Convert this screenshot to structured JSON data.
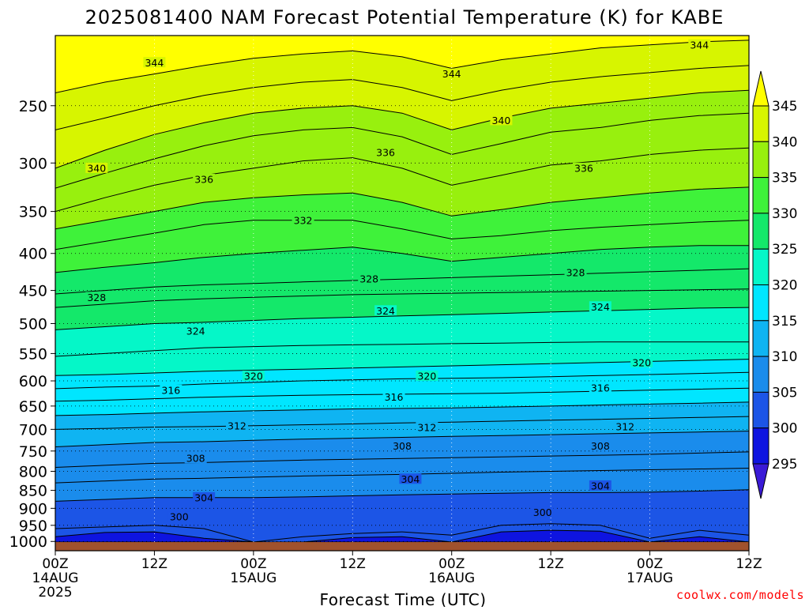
{
  "chart_data": {
    "type": "heatmap",
    "title": "2025081400 NAM Forecast Potential Temperature (K) for KABE",
    "xlabel": "Forecast Time (UTC)",
    "ylabel": "",
    "y_scale": "log",
    "y_inverted": true,
    "ylim": [
      1030,
      200
    ],
    "xlim": [
      0,
      84
    ],
    "x_unit": "hours since 2025-08-14 00Z",
    "y_ticks": [
      250,
      300,
      350,
      400,
      450,
      500,
      550,
      600,
      650,
      700,
      750,
      800,
      850,
      900,
      950,
      1000
    ],
    "x_ticks": [
      {
        "value": 0,
        "label": "00Z",
        "sub": "14AUG",
        "sub2": "2025"
      },
      {
        "value": 12,
        "label": "12Z",
        "sub": "",
        "sub2": ""
      },
      {
        "value": 24,
        "label": "00Z",
        "sub": "15AUG",
        "sub2": ""
      },
      {
        "value": 36,
        "label": "12Z",
        "sub": "",
        "sub2": ""
      },
      {
        "value": 48,
        "label": "00Z",
        "sub": "16AUG",
        "sub2": ""
      },
      {
        "value": 60,
        "label": "12Z",
        "sub": "",
        "sub2": ""
      },
      {
        "value": 72,
        "label": "00Z",
        "sub": "17AUG",
        "sub2": ""
      },
      {
        "value": 84,
        "label": "12Z",
        "sub": "",
        "sub2": ""
      }
    ],
    "grid": true,
    "legend": "right",
    "colorbar": {
      "levels": [
        295,
        300,
        305,
        310,
        315,
        320,
        325,
        330,
        335,
        340,
        345
      ],
      "colors": [
        "#3a1ad6",
        "#0e14e0",
        "#1c55e6",
        "#1a8cec",
        "#0fb4f2",
        "#00e6ff",
        "#05f7c8",
        "#14e86a",
        "#3ff23a",
        "#98f00e",
        "#d7f500",
        "#ffff00"
      ],
      "extend": "both"
    },
    "series": [
      {
        "value": 298,
        "pressures": [
          1002,
          1002,
          1002,
          1002,
          1002,
          1002,
          1002,
          1002,
          1002,
          1002,
          1002,
          1002,
          1002,
          1002,
          1002
        ]
      },
      {
        "value": 300,
        "pressures": [
          985,
          972,
          970,
          990,
          1002,
          1002,
          988,
          985,
          1002,
          970,
          965,
          968,
          1002,
          985,
          1002
        ]
      },
      {
        "value": 302,
        "pressures": [
          960,
          955,
          950,
          960,
          1002,
          985,
          975,
          970,
          980,
          950,
          945,
          950,
          990,
          965,
          980
        ]
      },
      {
        "value": 304,
        "pressures": [
          880,
          875,
          870,
          870,
          870,
          868,
          865,
          862,
          860,
          858,
          856,
          856,
          855,
          852,
          848
        ]
      },
      {
        "value": 306,
        "pressures": [
          830,
          825,
          820,
          818,
          815,
          812,
          810,
          808,
          805,
          802,
          800,
          798,
          796,
          794,
          792
        ]
      },
      {
        "value": 308,
        "pressures": [
          790,
          785,
          780,
          778,
          775,
          772,
          770,
          768,
          766,
          764,
          762,
          760,
          758,
          755,
          752
        ]
      },
      {
        "value": 310,
        "pressures": [
          740,
          735,
          730,
          728,
          725,
          722,
          720,
          718,
          716,
          714,
          712,
          710,
          708,
          706,
          704
        ]
      },
      {
        "value": 312,
        "pressures": [
          700,
          698,
          695,
          694,
          692,
          690,
          688,
          686,
          684,
          682,
          680,
          678,
          676,
          674,
          672
        ]
      },
      {
        "value": 314,
        "pressures": [
          670,
          668,
          665,
          662,
          660,
          658,
          656,
          655,
          654,
          652,
          650,
          648,
          646,
          644,
          642
        ]
      },
      {
        "value": 316,
        "pressures": [
          640,
          638,
          635,
          632,
          630,
          628,
          627,
          626,
          625,
          624,
          622,
          620,
          618,
          616,
          614
        ]
      },
      {
        "value": 318,
        "pressures": [
          615,
          612,
          610,
          606,
          603,
          600,
          598,
          596,
          595,
          594,
          592,
          590,
          588,
          586,
          584
        ]
      },
      {
        "value": 320,
        "pressures": [
          590,
          588,
          585,
          582,
          580,
          578,
          576,
          574,
          572,
          570,
          568,
          566,
          564,
          562,
          560
        ]
      },
      {
        "value": 322,
        "pressures": [
          555,
          550,
          545,
          540,
          538,
          536,
          535,
          534,
          533,
          532,
          531,
          530,
          530,
          530,
          530
        ]
      },
      {
        "value": 324,
        "pressures": [
          510,
          505,
          500,
          498,
          495,
          492,
          490,
          488,
          486,
          484,
          482,
          480,
          478,
          476,
          475
        ]
      },
      {
        "value": 326,
        "pressures": [
          475,
          470,
          465,
          462,
          460,
          458,
          456,
          455,
          454,
          453,
          452,
          451,
          450,
          449,
          448
        ]
      },
      {
        "value": 328,
        "pressures": [
          455,
          450,
          445,
          442,
          440,
          438,
          436,
          434,
          432,
          430,
          428,
          426,
          424,
          422,
          420
        ]
      },
      {
        "value": 330,
        "pressures": [
          425,
          418,
          412,
          405,
          400,
          396,
          392,
          400,
          410,
          405,
          400,
          395,
          392,
          390,
          390
        ]
      },
      {
        "value": 332,
        "pressures": [
          395,
          385,
          375,
          365,
          360,
          360,
          360,
          370,
          382,
          378,
          372,
          368,
          365,
          362,
          360
        ]
      },
      {
        "value": 334,
        "pressures": [
          370,
          360,
          350,
          340,
          335,
          332,
          330,
          340,
          355,
          348,
          340,
          335,
          330,
          326,
          324
        ]
      },
      {
        "value": 336,
        "pressures": [
          350,
          335,
          322,
          312,
          305,
          298,
          295,
          305,
          322,
          312,
          302,
          298,
          292,
          288,
          286
        ]
      },
      {
        "value": 338,
        "pressures": [
          325,
          310,
          296,
          284,
          275,
          270,
          268,
          276,
          292,
          282,
          272,
          268,
          262,
          258,
          256
        ]
      },
      {
        "value": 340,
        "pressures": [
          305,
          288,
          274,
          264,
          256,
          252,
          250,
          256,
          270,
          260,
          252,
          248,
          244,
          240,
          238
        ]
      },
      {
        "value": 342,
        "pressures": [
          270,
          260,
          250,
          242,
          236,
          232,
          230,
          236,
          246,
          238,
          232,
          228,
          225,
          222,
          220
        ]
      },
      {
        "value": 344,
        "pressures": [
          240,
          232,
          226,
          220,
          215,
          212,
          210,
          214,
          222,
          216,
          212,
          208,
          206,
          204,
          203
        ]
      }
    ],
    "series_times": [
      0,
      6,
      12,
      18,
      24,
      30,
      36,
      42,
      48,
      54,
      60,
      66,
      72,
      78,
      84
    ],
    "labels": [
      {
        "text": "344",
        "t": 12,
        "p": 218
      },
      {
        "text": "344",
        "t": 48,
        "p": 226
      },
      {
        "text": "344",
        "t": 78,
        "p": 206
      },
      {
        "text": "340",
        "t": 5,
        "p": 305
      },
      {
        "text": "340",
        "t": 54,
        "p": 262
      },
      {
        "text": "336",
        "t": 18,
        "p": 316
      },
      {
        "text": "336",
        "t": 40,
        "p": 290
      },
      {
        "text": "336",
        "t": 64,
        "p": 305
      },
      {
        "text": "332",
        "t": 30,
        "p": 360
      },
      {
        "text": "328",
        "t": 5,
        "p": 460
      },
      {
        "text": "328",
        "t": 38,
        "p": 434
      },
      {
        "text": "328",
        "t": 63,
        "p": 425
      },
      {
        "text": "324",
        "t": 17,
        "p": 512
      },
      {
        "text": "324",
        "t": 40,
        "p": 480
      },
      {
        "text": "324",
        "t": 66,
        "p": 474
      },
      {
        "text": "320",
        "t": 24,
        "p": 591
      },
      {
        "text": "320",
        "t": 45,
        "p": 591
      },
      {
        "text": "320",
        "t": 71,
        "p": 566
      },
      {
        "text": "316",
        "t": 14,
        "p": 618
      },
      {
        "text": "316",
        "t": 41,
        "p": 632
      },
      {
        "text": "316",
        "t": 66,
        "p": 614
      },
      {
        "text": "312",
        "t": 22,
        "p": 692
      },
      {
        "text": "312",
        "t": 45,
        "p": 696
      },
      {
        "text": "312",
        "t": 69,
        "p": 694
      },
      {
        "text": "308",
        "t": 17,
        "p": 768
      },
      {
        "text": "308",
        "t": 42,
        "p": 738
      },
      {
        "text": "308",
        "t": 66,
        "p": 738
      },
      {
        "text": "304",
        "t": 18,
        "p": 870
      },
      {
        "text": "304",
        "t": 43,
        "p": 820
      },
      {
        "text": "304",
        "t": 66,
        "p": 838
      },
      {
        "text": "300",
        "t": 15,
        "p": 925
      },
      {
        "text": "300",
        "t": 59,
        "p": 912
      }
    ]
  },
  "footer": {
    "credit": "coolwx.com/models"
  }
}
